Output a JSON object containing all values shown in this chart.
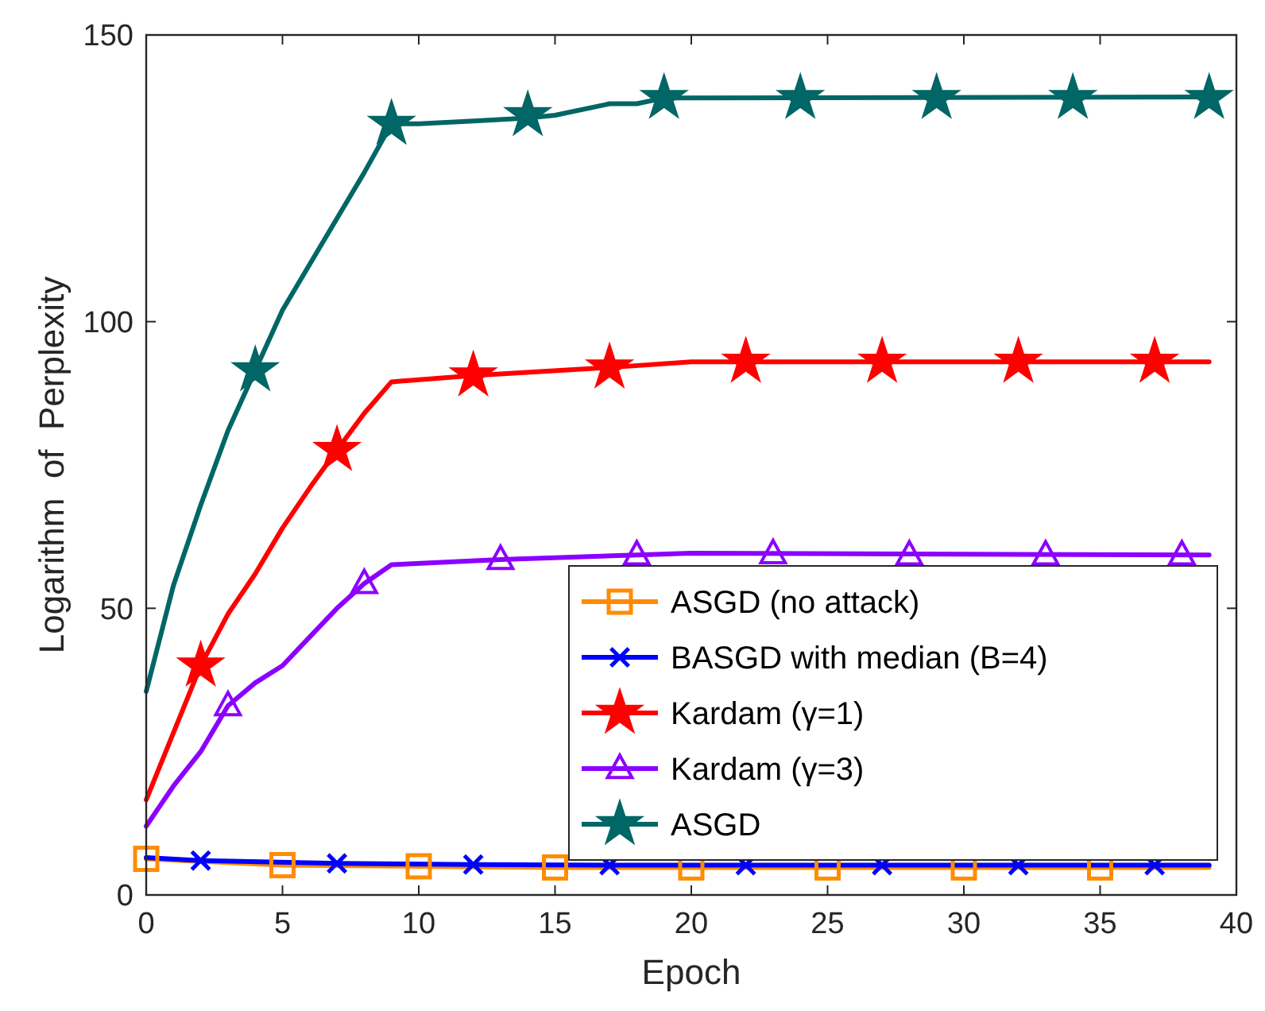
{
  "chart_data": {
    "type": "line",
    "xlabel": "Epoch",
    "ylabel": "Logarithm  of  Perplexity",
    "xlim": [
      0,
      40
    ],
    "ylim": [
      0,
      150
    ],
    "xticks": [
      0,
      5,
      10,
      15,
      20,
      25,
      30,
      35,
      40
    ],
    "yticks": [
      0,
      50,
      100,
      150
    ],
    "grid": false,
    "legend": "bottom right",
    "series": [
      {
        "type": "line",
        "marker": "none",
        "color": "#ff8c00",
        "x": [
          0,
          5,
          10,
          15,
          39
        ],
        "values": [
          6.3,
          5.2,
          5,
          4.8,
          4.8
        ]
      },
      {
        "type": "line",
        "marker": "none",
        "color": "#0000ff",
        "x": [
          0,
          2,
          7,
          12,
          17,
          39
        ],
        "values": [
          6.5,
          6,
          5.5,
          5.3,
          5.2,
          5.2
        ]
      },
      {
        "type": "line",
        "marker": "none",
        "color": "#ff0000",
        "x": [
          0,
          2,
          3,
          4,
          5,
          6,
          7,
          8,
          9,
          12,
          17,
          20,
          39
        ],
        "values": [
          16.6,
          40,
          49,
          56,
          64,
          71,
          77.6,
          84,
          89.5,
          90.6,
          92,
          93,
          93
        ]
      },
      {
        "type": "line",
        "marker": "none",
        "color": "#8b00ff",
        "x": [
          0,
          1,
          2,
          3,
          4,
          5,
          6,
          7,
          8,
          9,
          13,
          18,
          20,
          39
        ],
        "values": [
          12,
          19,
          25,
          33,
          37,
          40,
          45,
          50,
          54.3,
          57.6,
          58.5,
          59.3,
          59.6,
          59.3
        ]
      },
      {
        "type": "line",
        "marker": "none",
        "color": "#006666",
        "x": [
          0,
          1,
          2,
          3,
          4,
          5,
          6,
          7,
          8,
          9,
          10,
          12,
          14,
          15,
          17,
          18,
          19,
          39
        ],
        "values": [
          35.5,
          54,
          68,
          81,
          91.5,
          102,
          110,
          118,
          126,
          134.5,
          134.5,
          135,
          135.5,
          136,
          138,
          138,
          139,
          139.2
        ]
      },
      {
        "type": "scatter",
        "name": "ASGD (no attack)",
        "marker": "square",
        "color": "#ff8c00",
        "x": [
          0,
          5,
          10,
          15,
          20,
          25,
          30,
          35
        ],
        "values": [
          6.3,
          5.2,
          5,
          4.8,
          4.8,
          4.8,
          4.8,
          4.8
        ]
      },
      {
        "type": "scatter",
        "name": "BASGD with median (B=4)",
        "marker": "cross",
        "color": "#0000ff",
        "x": [
          2,
          7,
          12,
          17,
          22,
          27,
          32,
          37
        ],
        "values": [
          6,
          5.5,
          5.3,
          5.2,
          5.2,
          5.2,
          5.2,
          5.2
        ]
      },
      {
        "type": "scatter",
        "name": "Kardam (γ=1)",
        "marker": "star",
        "color": "#ff0000",
        "x": [
          2,
          7,
          12,
          17,
          22,
          27,
          32,
          37
        ],
        "values": [
          40,
          77.6,
          90.6,
          92,
          93,
          93,
          93,
          93
        ]
      },
      {
        "type": "scatter",
        "name": "Kardam (γ=3)",
        "marker": "triangle",
        "color": "#8b00ff",
        "x": [
          3,
          8,
          13,
          18,
          23,
          28,
          33,
          38
        ],
        "values": [
          33,
          54.3,
          58.5,
          59.3,
          59.5,
          59.3,
          59.3,
          59.3
        ]
      },
      {
        "type": "scatter",
        "name": "ASGD",
        "marker": "star",
        "color": "#006666",
        "x": [
          4,
          9,
          14,
          19,
          24,
          29,
          34,
          39
        ],
        "values": [
          91.5,
          134.5,
          136,
          139,
          139,
          139,
          139,
          139
        ]
      }
    ]
  }
}
